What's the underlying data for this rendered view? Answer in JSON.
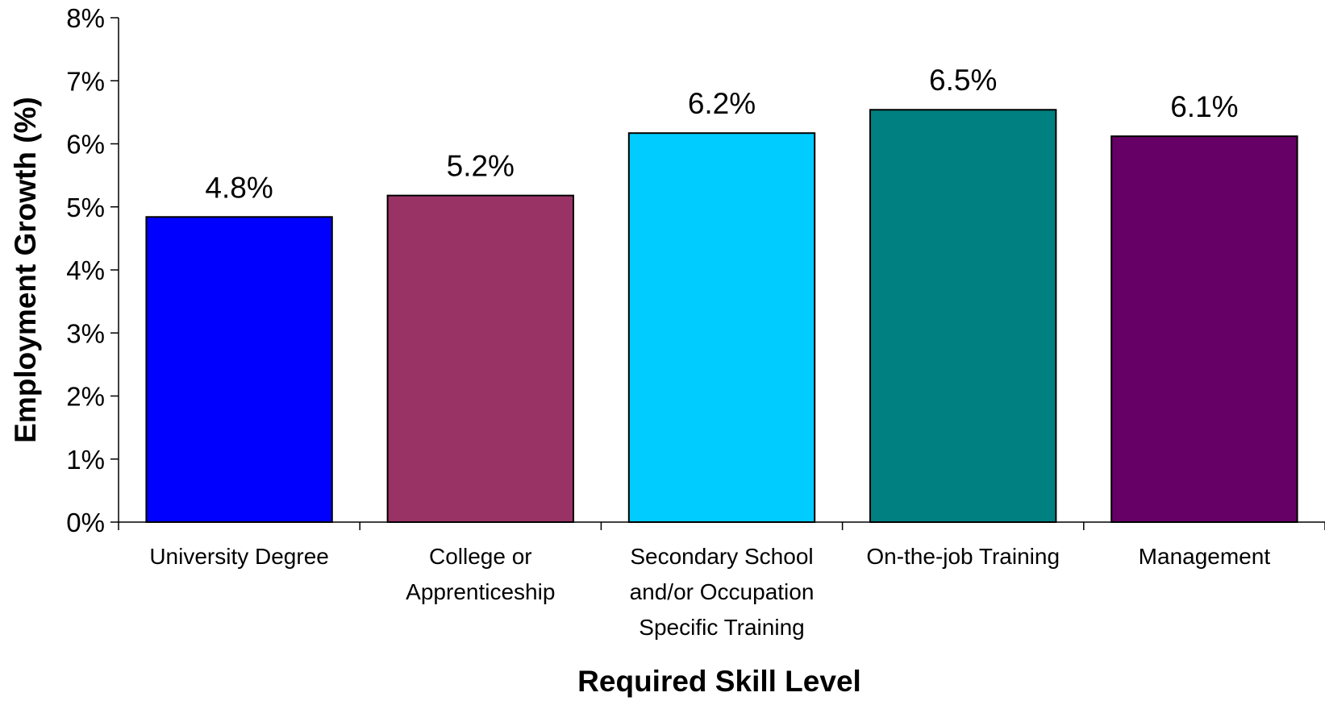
{
  "chart_data": {
    "type": "bar",
    "categories": [
      [
        "University Degree"
      ],
      [
        "College or",
        "Apprenticeship"
      ],
      [
        "Secondary School",
        "and/or Occupation",
        "Specific Training"
      ],
      [
        "On-the-job Training"
      ],
      [
        "Management"
      ]
    ],
    "values": [
      4.8,
      5.2,
      6.2,
      6.5,
      6.1
    ],
    "plotted_values": [
      4.84,
      5.18,
      6.17,
      6.54,
      6.12
    ],
    "data_labels": [
      "4.8%",
      "5.2%",
      "6.2%",
      "6.5%",
      "6.1%"
    ],
    "colors": [
      "#0000FF",
      "#993366",
      "#00CCFF",
      "#008080",
      "#660066"
    ],
    "title": "",
    "xlabel": "Required Skill Level",
    "ylabel": "Employment Growth (%)",
    "ylim": [
      0,
      8
    ],
    "yticks": [
      0,
      1,
      2,
      3,
      4,
      5,
      6,
      7,
      8
    ],
    "ytick_labels": [
      "0%",
      "1%",
      "2%",
      "3%",
      "4%",
      "5%",
      "6%",
      "7%",
      "8%"
    ],
    "grid": false,
    "legend": "none"
  }
}
